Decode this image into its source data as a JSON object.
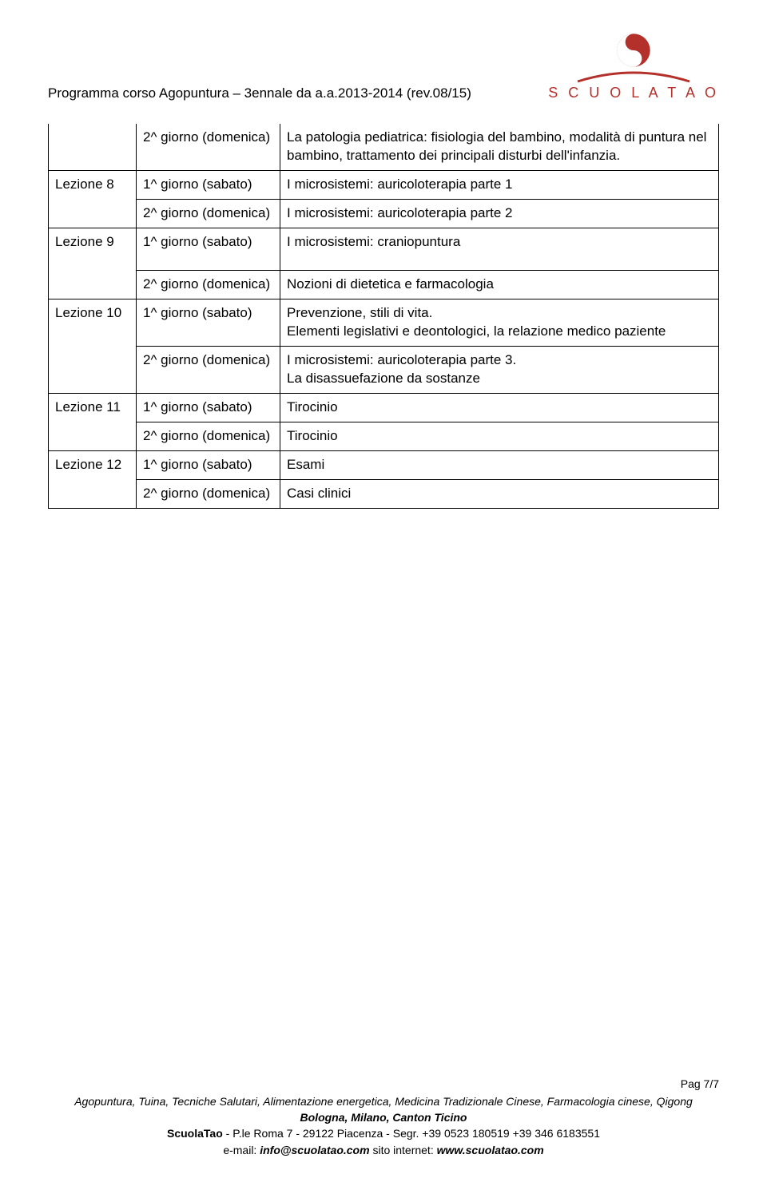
{
  "header": {
    "title": "Programma corso Agopuntura – 3ennale da a.a.2013-2014 (rev.08/15)",
    "logo_text": "S C U O L A T A O",
    "logo_color": "#b4312b"
  },
  "table": {
    "rows": [
      {
        "lesson": "",
        "day": "2^ giorno (domenica)",
        "content": "La patologia pediatrica: fisiologia del bambino, modalità di puntura nel bambino, trattamento dei principali disturbi dell'infanzia."
      },
      {
        "lesson": "Lezione 8",
        "day": "1^ giorno (sabato)",
        "content": "I microsistemi: auricoloterapia parte 1"
      },
      {
        "lesson": "",
        "day": "2^ giorno (domenica)",
        "content": "I microsistemi: auricoloterapia parte 2"
      },
      {
        "lesson": "Lezione 9",
        "day": "1^ giorno (sabato)",
        "content": "I microsistemi: craniopuntura"
      },
      {
        "lesson": "",
        "day": "2^ giorno (domenica)",
        "content": "Nozioni di dietetica e farmacologia"
      },
      {
        "lesson": "Lezione 10",
        "day": "1^ giorno (sabato)",
        "content": "Prevenzione, stili di vita.\nElementi legislativi e deontologici, la relazione medico paziente"
      },
      {
        "lesson": "",
        "day": "2^ giorno (domenica)",
        "content": "I microsistemi: auricoloterapia parte 3.\nLa disassuefazione da sostanze"
      },
      {
        "lesson": "Lezione 11",
        "day": "1^ giorno (sabato)",
        "content": "Tirocinio"
      },
      {
        "lesson": "",
        "day": "2^ giorno (domenica)",
        "content": "Tirocinio"
      },
      {
        "lesson": "Lezione 12",
        "day": "1^ giorno (sabato)",
        "content": "Esami"
      },
      {
        "lesson": "",
        "day": "2^ giorno (domenica)",
        "content": "Casi clinici"
      }
    ]
  },
  "footer": {
    "pag": "Pag 7/7",
    "line1": "Agopuntura, Tuina, Tecniche Salutari, Alimentazione energetica, Medicina Tradizionale Cinese, Farmacologia cinese, Qigong",
    "line2": "Bologna, Milano, Canton Ticino",
    "line3_a": "ScuolaTao",
    "line3_b": " - P.le Roma 7 - 29122 Piacenza  - Segr. +39 0523 180519  +39 346 6183551",
    "line4_a": "e-mail: ",
    "line4_b": "info@scuolatao.com",
    "line4_c": "  sito internet: ",
    "line4_d": "www.scuolatao.com"
  }
}
